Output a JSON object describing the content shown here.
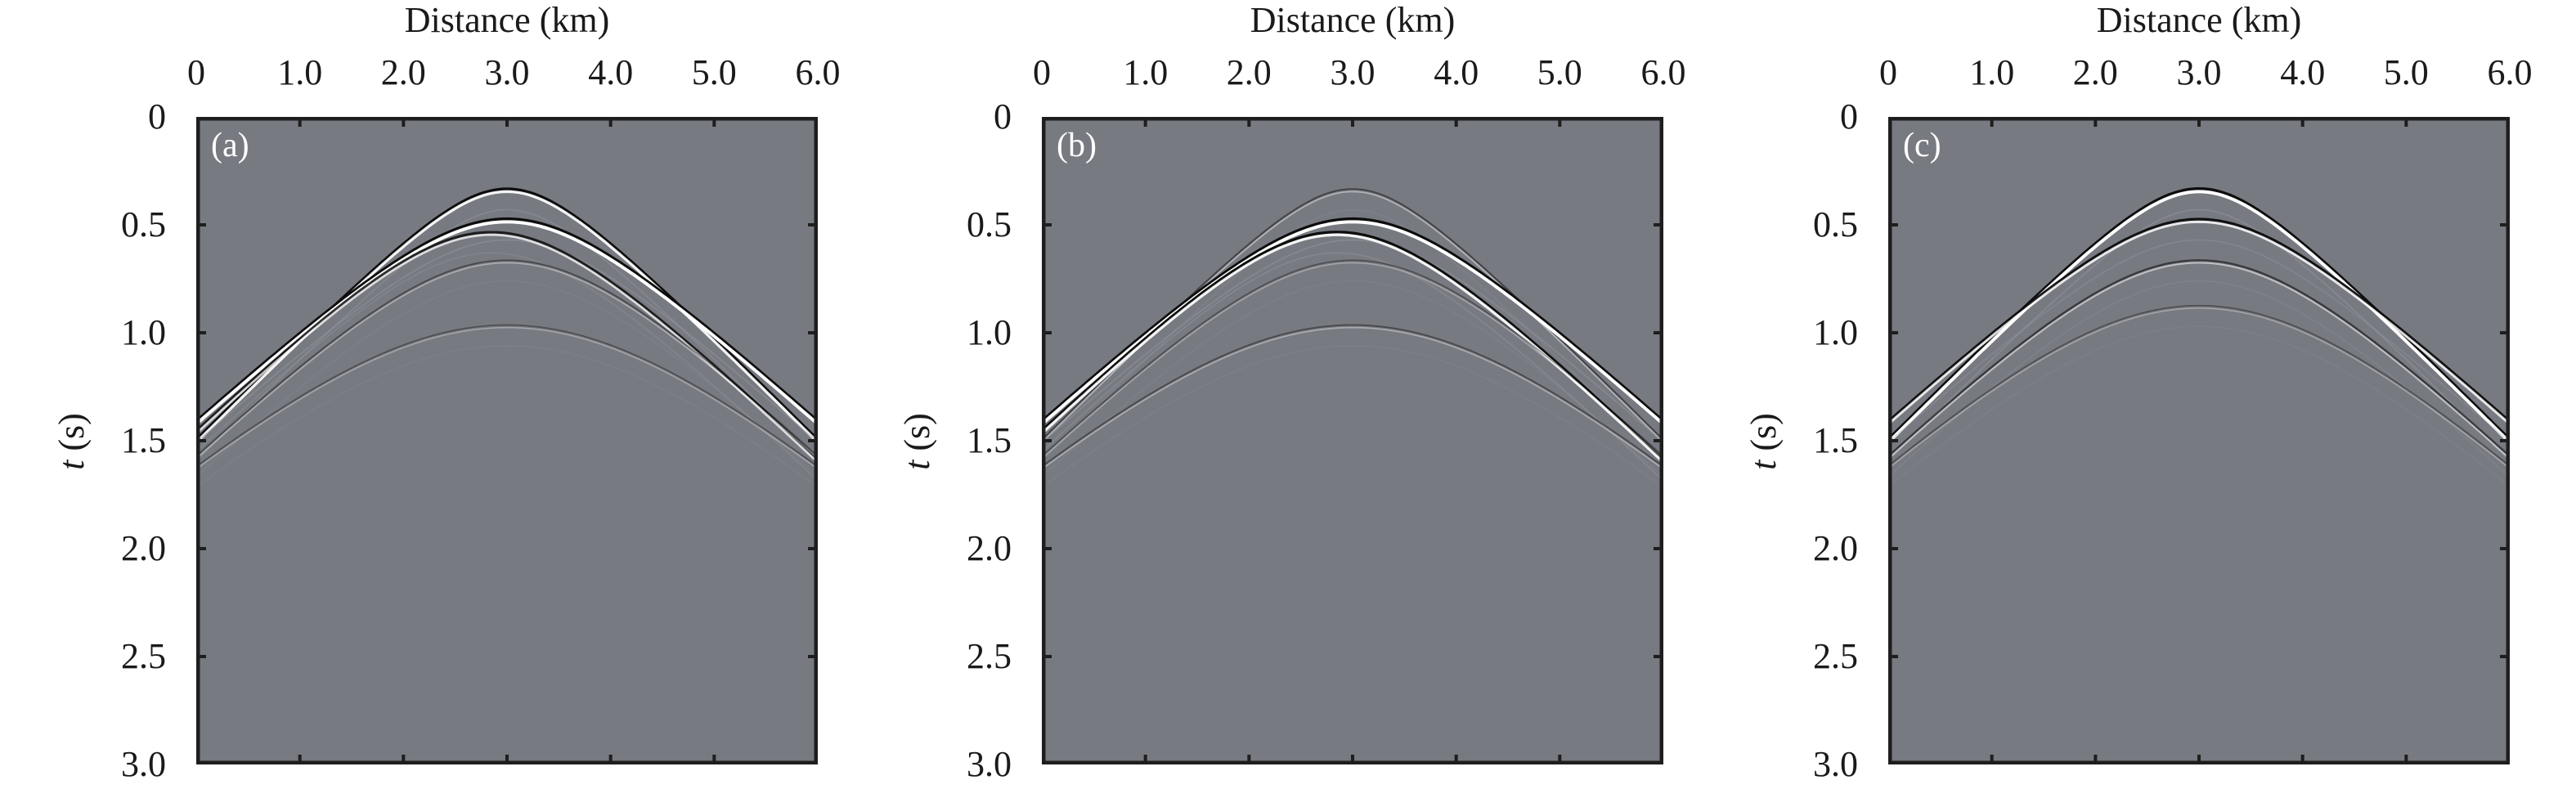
{
  "figure": {
    "background_color": "#787a82",
    "frame_color": "#1e1e1e",
    "panels": [
      {
        "id": "a",
        "label": "(a)",
        "xlabel": "Distance (km)",
        "ylabel_italic": "t",
        "ylabel_rest": " (s)"
      },
      {
        "id": "b",
        "label": "(b)",
        "xlabel": "Distance (km)",
        "ylabel_italic": "t",
        "ylabel_rest": " (s)"
      },
      {
        "id": "c",
        "label": "(c)",
        "xlabel": "Distance (km)",
        "ylabel_italic": "t",
        "ylabel_rest": " (s)"
      }
    ],
    "xticks": [
      "0",
      "1.0",
      "2.0",
      "3.0",
      "4.0",
      "5.0",
      "6.0"
    ],
    "yticks": [
      "0",
      "0.5",
      "1.0",
      "1.5",
      "2.0",
      "2.5",
      "3.0"
    ]
  },
  "chart_data": [
    {
      "type": "heatmap",
      "title": "(a)",
      "subtype": "seismic shot gather (wiggle-density, gray colormap)",
      "xlabel": "Distance (km)",
      "ylabel": "t (s)",
      "xlim": [
        0,
        6.0
      ],
      "ylim": [
        3.0,
        0
      ],
      "xticks": [
        0,
        1.0,
        2.0,
        3.0,
        4.0,
        5.0,
        6.0
      ],
      "yticks": [
        0,
        0.5,
        1.0,
        1.5,
        2.0,
        2.5,
        3.0
      ],
      "grid": false,
      "events": [
        {
          "name": "hyperbola-1",
          "apex_x_km": 3.0,
          "apex_t_s": 0.34,
          "velocity_km_s": 2.05,
          "amplitude": 0.8
        },
        {
          "name": "hyperbola-2",
          "apex_x_km": 3.0,
          "apex_t_s": 0.48,
          "velocity_km_s": 2.25,
          "amplitude": 1.0
        },
        {
          "name": "hyperbola-3",
          "apex_x_km": 2.85,
          "apex_t_s": 0.54,
          "velocity_km_s": 2.1,
          "amplitude": 0.6
        },
        {
          "name": "hyperbola-4",
          "apex_x_km": 3.0,
          "apex_t_s": 0.67,
          "velocity_km_s": 2.1,
          "amplitude": 0.2
        },
        {
          "name": "hyperbola-5",
          "apex_x_km": 3.0,
          "apex_t_s": 0.97,
          "velocity_km_s": 2.3,
          "amplitude": 0.15
        }
      ]
    },
    {
      "type": "heatmap",
      "title": "(b)",
      "subtype": "seismic shot gather (wiggle-density, gray colormap)",
      "xlabel": "Distance (km)",
      "ylabel": "t (s)",
      "xlim": [
        0,
        6.0
      ],
      "ylim": [
        3.0,
        0
      ],
      "xticks": [
        0,
        1.0,
        2.0,
        3.0,
        4.0,
        5.0,
        6.0
      ],
      "yticks": [
        0,
        0.5,
        1.0,
        1.5,
        2.0,
        2.5,
        3.0
      ],
      "grid": false,
      "events": [
        {
          "name": "hyperbola-1",
          "apex_x_km": 3.0,
          "apex_t_s": 0.34,
          "velocity_km_s": 2.05,
          "amplitude": 0.25
        },
        {
          "name": "hyperbola-2",
          "apex_x_km": 3.0,
          "apex_t_s": 0.48,
          "velocity_km_s": 2.25,
          "amplitude": 1.0
        },
        {
          "name": "hyperbola-3",
          "apex_x_km": 2.85,
          "apex_t_s": 0.54,
          "velocity_km_s": 2.1,
          "amplitude": 0.8
        },
        {
          "name": "hyperbola-4",
          "apex_x_km": 3.0,
          "apex_t_s": 0.67,
          "velocity_km_s": 2.1,
          "amplitude": 0.15
        },
        {
          "name": "hyperbola-5",
          "apex_x_km": 3.0,
          "apex_t_s": 0.97,
          "velocity_km_s": 2.3,
          "amplitude": 0.2
        }
      ]
    },
    {
      "type": "heatmap",
      "title": "(c)",
      "subtype": "seismic shot gather (wiggle-density, gray colormap)",
      "xlabel": "Distance (km)",
      "ylabel": "t (s)",
      "xlim": [
        0,
        6.0
      ],
      "ylim": [
        3.0,
        0
      ],
      "xticks": [
        0,
        1.0,
        2.0,
        3.0,
        4.0,
        5.0,
        6.0
      ],
      "yticks": [
        0,
        0.5,
        1.0,
        1.5,
        2.0,
        2.5,
        3.0
      ],
      "grid": false,
      "events": [
        {
          "name": "hyperbola-1",
          "apex_x_km": 3.0,
          "apex_t_s": 0.34,
          "velocity_km_s": 2.05,
          "amplitude": 1.0
        },
        {
          "name": "hyperbola-2",
          "apex_x_km": 3.0,
          "apex_t_s": 0.48,
          "velocity_km_s": 2.25,
          "amplitude": 0.7
        },
        {
          "name": "hyperbola-4",
          "apex_x_km": 3.0,
          "apex_t_s": 0.67,
          "velocity_km_s": 2.1,
          "amplitude": 0.35
        },
        {
          "name": "hyperbola-5",
          "apex_x_km": 3.0,
          "apex_t_s": 0.88,
          "velocity_km_s": 2.2,
          "amplitude": 0.15
        }
      ]
    }
  ]
}
